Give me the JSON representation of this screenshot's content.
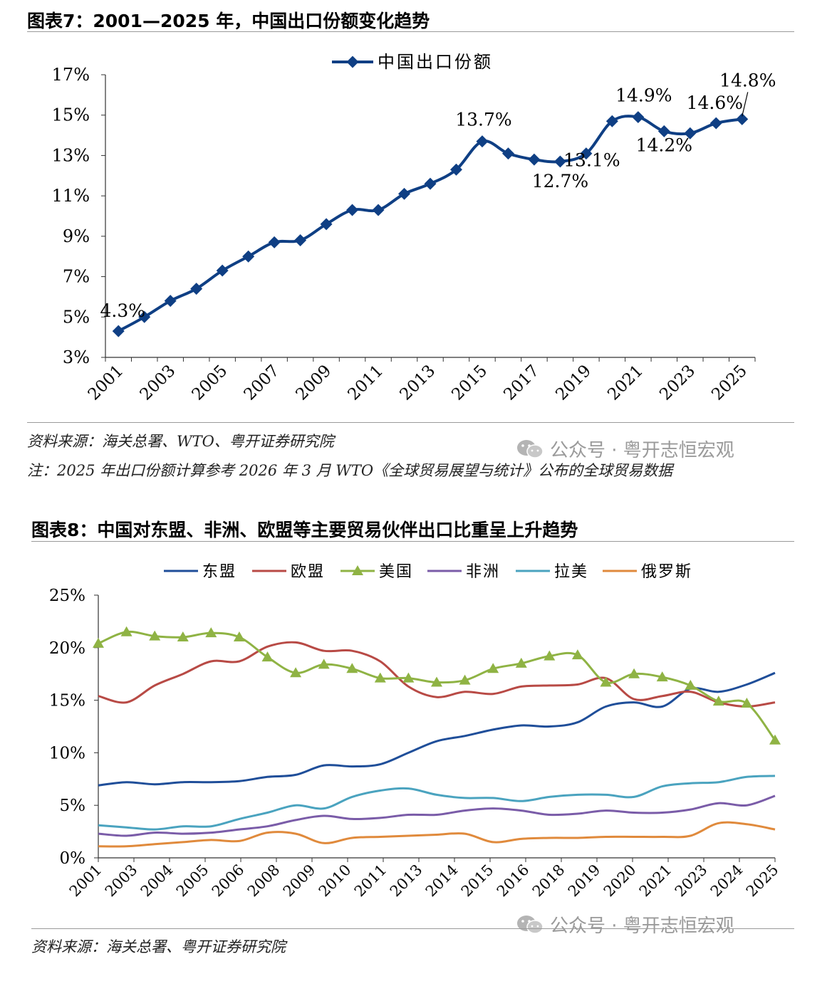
{
  "fig7": {
    "title": "图表7：2001—2025 年，中国出口份额变化趋势",
    "source": "资料来源：海关总署、WTO、粤开证券研究院",
    "note": "注：2025 年出口份额计算参考 2026 年 3 月 WTO《全球贸易展望与统计》公布的全球贸易数据",
    "watermark": "公众号 · 粤开志恒宏观"
  },
  "fig8": {
    "title": "图表8：中国对东盟、非洲、欧盟等主要贸易伙伴出口比重呈上升趋势",
    "source": "资料来源：海关总署、粤开证券研究院",
    "watermark": "公众号 · 粤开志恒宏观"
  },
  "chart_data": [
    {
      "type": "line",
      "legend": "中国出口份额",
      "color": "#0f3f84",
      "x": [
        "2001",
        "2002",
        "2003",
        "2004",
        "2005",
        "2006",
        "2007",
        "2008",
        "2009",
        "2010",
        "2011",
        "2012",
        "2013",
        "2014",
        "2015",
        "2016",
        "2017",
        "2018",
        "2019",
        "2020",
        "2021",
        "2022",
        "2023",
        "2024",
        "2025"
      ],
      "x_tick_labels": [
        "2001",
        "2003",
        "2005",
        "2007",
        "2009",
        "2011",
        "2013",
        "2015",
        "2017",
        "2019",
        "2021",
        "2023",
        "2025"
      ],
      "values": [
        4.3,
        5.0,
        5.8,
        6.4,
        7.3,
        8.0,
        8.7,
        8.8,
        9.6,
        10.3,
        10.3,
        11.1,
        11.6,
        12.3,
        13.7,
        13.1,
        12.8,
        12.7,
        13.1,
        14.7,
        14.9,
        14.2,
        14.1,
        14.6,
        14.8
      ],
      "ylim": [
        3,
        17
      ],
      "y_ticks": [
        "3%",
        "5%",
        "7%",
        "9%",
        "11%",
        "13%",
        "15%",
        "17%"
      ],
      "annotations": [
        {
          "year": "2001",
          "text": "4.3%"
        },
        {
          "year": "2015",
          "text": "13.7%"
        },
        {
          "year": "2018",
          "text": "12.7%"
        },
        {
          "year": "2019",
          "text": "13.1%"
        },
        {
          "year": "2021",
          "text": "14.9%"
        },
        {
          "year": "2022",
          "text": "14.2%"
        },
        {
          "year": "2024",
          "text": "14.6%"
        },
        {
          "year": "2025",
          "text": "14.8%"
        }
      ]
    },
    {
      "type": "line",
      "x_tick_labels": [
        "2001",
        "2003",
        "2004",
        "2005",
        "2006",
        "2008",
        "2009",
        "2010",
        "2011",
        "2013",
        "2014",
        "2015",
        "2016",
        "2018",
        "2019",
        "2020",
        "2021",
        "2023",
        "2024",
        "2025"
      ],
      "ylim": [
        0,
        25
      ],
      "y_ticks": [
        "0%",
        "5%",
        "10%",
        "15%",
        "20%",
        "25%"
      ],
      "series": [
        {
          "name": "东盟",
          "color": "#1f4e99",
          "values": [
            6.9,
            7.2,
            7.0,
            7.2,
            7.2,
            7.3,
            7.7,
            7.9,
            8.8,
            8.7,
            8.9,
            10.0,
            11.1,
            11.6,
            12.2,
            12.6,
            12.5,
            12.9,
            14.4,
            14.8,
            14.4,
            16.1,
            15.8,
            16.5,
            17.6
          ]
        },
        {
          "name": "欧盟",
          "color": "#b84a45",
          "values": [
            15.4,
            14.8,
            16.4,
            17.5,
            18.7,
            18.7,
            20.1,
            20.5,
            19.7,
            19.7,
            18.7,
            16.3,
            15.3,
            15.8,
            15.6,
            16.3,
            16.4,
            16.5,
            17.1,
            15.1,
            15.4,
            15.8,
            14.8,
            14.4,
            14.8
          ]
        },
        {
          "name": "美国",
          "color": "#8fb344",
          "marker": "triangle",
          "values": [
            20.4,
            21.5,
            21.1,
            21.0,
            21.4,
            21.0,
            19.1,
            17.6,
            18.4,
            18.0,
            17.1,
            17.1,
            16.7,
            16.9,
            18.0,
            18.5,
            19.2,
            19.3,
            16.7,
            17.5,
            17.2,
            16.4,
            14.9,
            14.7,
            11.2
          ]
        },
        {
          "name": "非洲",
          "color": "#7a5ca8",
          "values": [
            2.3,
            2.1,
            2.4,
            2.3,
            2.4,
            2.7,
            3.0,
            3.6,
            4.0,
            3.7,
            3.8,
            4.1,
            4.1,
            4.5,
            4.7,
            4.5,
            4.1,
            4.2,
            4.5,
            4.3,
            4.3,
            4.6,
            5.2,
            5.0,
            5.9
          ]
        },
        {
          "name": "拉美",
          "color": "#4aa3bf",
          "values": [
            3.1,
            2.9,
            2.7,
            3.0,
            3.0,
            3.7,
            4.3,
            5.0,
            4.7,
            5.8,
            6.4,
            6.6,
            6.0,
            5.7,
            5.7,
            5.4,
            5.8,
            6.0,
            6.0,
            5.8,
            6.8,
            7.1,
            7.2,
            7.7,
            7.8
          ]
        },
        {
          "name": "俄罗斯",
          "color": "#e08a3c",
          "values": [
            1.1,
            1.1,
            1.3,
            1.5,
            1.7,
            1.6,
            2.4,
            2.3,
            1.4,
            1.9,
            2.0,
            2.1,
            2.2,
            2.3,
            1.5,
            1.8,
            1.9,
            1.9,
            2.0,
            2.0,
            2.0,
            2.1,
            3.3,
            3.2,
            2.7
          ]
        }
      ]
    }
  ]
}
